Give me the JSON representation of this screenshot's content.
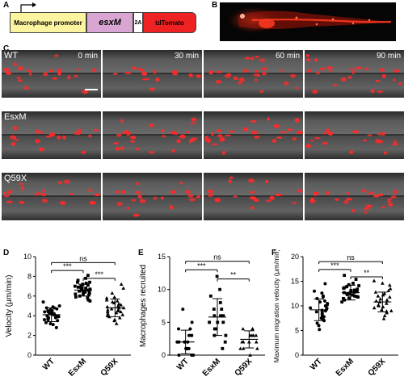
{
  "panels": {
    "a": "A",
    "b": "B",
    "c": "C",
    "d": "D",
    "e": "E",
    "f": "F"
  },
  "construct": {
    "promoter": "Macrophage promoter",
    "gene": "esxM",
    "linker": "2A",
    "reporter": "tdTomato",
    "colors": {
      "promoter": "#fdf4a0",
      "gene": "#d9a6d3",
      "linker": "#ffffff",
      "reporter": "#ee2222"
    }
  },
  "timelapse": {
    "rows": [
      "WT",
      "EsxM",
      "Q59X"
    ],
    "times": [
      "0 min",
      "30 min",
      "60 min",
      "90 min"
    ],
    "cell_color": "#ff2a2a"
  },
  "chart_data": [
    {
      "type": "scatter",
      "panel": "D",
      "ylabel": "Velocity (μm/min)",
      "categories": [
        "WT",
        "EsxM",
        "Q59X"
      ],
      "ylim": [
        0,
        10
      ],
      "yticks": [
        0,
        2,
        4,
        6,
        8,
        10
      ],
      "series": [
        {
          "values": [
            4.2,
            3.9,
            4.5,
            3.6,
            4.8,
            4.0,
            3.3,
            4.4,
            4.7,
            3.8,
            4.1,
            3.5,
            5.0,
            4.3,
            3.7,
            4.6,
            3.2,
            4.9,
            4.0,
            3.9,
            4.4,
            2.8,
            5.4,
            3.6,
            4.2,
            4.5,
            3.1,
            4.8,
            3.8,
            4.3
          ],
          "mean": 4.1,
          "sd": 0.7,
          "marker": "circle"
        },
        {
          "values": [
            6.5,
            7.0,
            6.2,
            6.8,
            7.4,
            5.9,
            6.6,
            7.8,
            6.3,
            6.9,
            7.1,
            5.6,
            6.4,
            7.3,
            6.0,
            6.7,
            8.1,
            6.1,
            6.8,
            7.2,
            5.8,
            6.5,
            7.6,
            6.2,
            6.9,
            7.0,
            6.4,
            5.5,
            6.6,
            7.4
          ],
          "mean": 6.6,
          "sd": 0.6,
          "marker": "square"
        },
        {
          "values": [
            4.6,
            5.2,
            4.1,
            5.8,
            4.8,
            3.9,
            5.4,
            4.4,
            6.3,
            4.9,
            3.5,
            5.1,
            4.3,
            5.6,
            4.0,
            4.7,
            6.8,
            3.6,
            5.0,
            4.5,
            5.9,
            4.2,
            3.2,
            5.3,
            4.8,
            4.6,
            7.2,
            3.8,
            5.5,
            4.4
          ],
          "mean": 4.8,
          "sd": 0.9,
          "marker": "triangle"
        }
      ],
      "comparisons": [
        {
          "from": 0,
          "to": 2,
          "label": "ns",
          "y": 9.4
        },
        {
          "from": 0,
          "to": 1,
          "label": "***",
          "y": 8.6
        },
        {
          "from": 1,
          "to": 2,
          "label": "***",
          "y": 7.8
        }
      ]
    },
    {
      "type": "scatter",
      "panel": "E",
      "ylabel": "Macrophages recruited",
      "categories": [
        "WT",
        "EsxM",
        "Q59X"
      ],
      "ylim": [
        0,
        15
      ],
      "yticks": [
        0,
        5,
        10,
        15
      ],
      "series": [
        {
          "values": [
            0,
            0,
            0,
            1,
            1,
            1,
            1,
            1,
            2,
            2,
            2,
            2,
            3,
            3,
            3,
            4,
            4,
            5,
            7
          ],
          "mean": 2.0,
          "sd": 1.8,
          "marker": "circle"
        },
        {
          "values": [
            1,
            2,
            3,
            3,
            4,
            4,
            5,
            5,
            5,
            6,
            6,
            6,
            7,
            7,
            8,
            9,
            10,
            12
          ],
          "mean": 5.8,
          "sd": 2.8,
          "marker": "square"
        },
        {
          "values": [
            0,
            1,
            1,
            1,
            2,
            2,
            2,
            2,
            3,
            3,
            3,
            3,
            4,
            4,
            4
          ],
          "mean": 2.4,
          "sd": 1.3,
          "marker": "triangle"
        }
      ],
      "comparisons": [
        {
          "from": 0,
          "to": 2,
          "label": "ns",
          "y": 14.3
        },
        {
          "from": 0,
          "to": 1,
          "label": "***",
          "y": 13.0
        },
        {
          "from": 1,
          "to": 2,
          "label": "**",
          "y": 11.6
        }
      ]
    },
    {
      "type": "scatter",
      "panel": "F",
      "ylabel": "Maximum migration velocity (μm/min)",
      "categories": [
        "WT",
        "EsxM",
        "Q59X"
      ],
      "ylim": [
        0,
        20
      ],
      "yticks": [
        0,
        5,
        10,
        15,
        20
      ],
      "series": [
        {
          "values": [
            9,
            7.5,
            10.5,
            8,
            11,
            6.5,
            9.5,
            12,
            8.5,
            10,
            7,
            13,
            9,
            11.5,
            6,
            8.8,
            10.2,
            14.5,
            7.8,
            9.3,
            11.8,
            5.2,
            8.2,
            10.8,
            9.6,
            12.6,
            7.2,
            9.1
          ],
          "mean": 9.2,
          "sd": 2.2,
          "marker": "circle"
        },
        {
          "values": [
            12.5,
            13.2,
            11.8,
            14.1,
            12.9,
            11.2,
            13.6,
            12.2,
            15.4,
            12.7,
            11.6,
            13.9,
            12.4,
            14.6,
            10.8,
            13.1,
            12.0,
            14.3,
            12.8,
            11.5,
            13.4,
            12.6,
            16.2,
            11.9,
            13.7,
            12.3
          ],
          "mean": 12.7,
          "sd": 1.5,
          "marker": "square"
        },
        {
          "values": [
            10.5,
            12,
            9,
            13.5,
            11,
            8,
            14.2,
            10.2,
            12.5,
            9.6,
            15.1,
            11.4,
            8.6,
            13.1,
            10.8,
            9.2,
            12.8,
            11.8,
            7.4,
            10.0,
            14.6,
            9.8,
            11.2,
            12.2,
            8.9
          ],
          "mean": 10.8,
          "sd": 2.0,
          "marker": "triangle"
        }
      ],
      "comparisons": [
        {
          "from": 0,
          "to": 2,
          "label": "ns",
          "y": 19.0
        },
        {
          "from": 0,
          "to": 1,
          "label": "***",
          "y": 17.4
        },
        {
          "from": 1,
          "to": 2,
          "label": "**",
          "y": 15.9
        }
      ]
    }
  ]
}
